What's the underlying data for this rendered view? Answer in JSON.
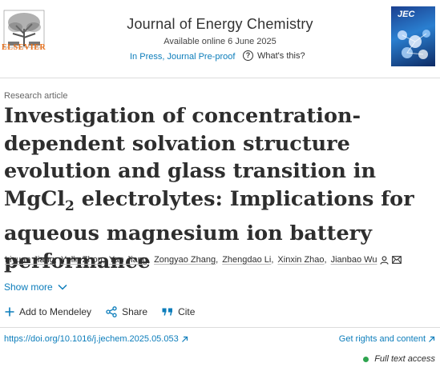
{
  "publisher": {
    "name": "ELSEVIER",
    "logo_icon": "elsevier-tree-icon",
    "brand_color": "#e9711c"
  },
  "journal": {
    "title": "Journal of Energy Chemistry",
    "available": "Available online 6 June 2025",
    "status": "In Press, Journal Pre-proof",
    "whats_this": "What's this?",
    "cover_label": "JEC"
  },
  "article": {
    "type": "Research article",
    "title_before": "Investigation of concentration-dependent solvation structure evolution and glass transition in MgCl",
    "title_sub": "2",
    "title_after": " electrolytes: Implications for aqueous magnesium ion battery performance"
  },
  "authors": [
    "Liyuan Jiang",
    "Yulin Zhou",
    "Yan Jiang",
    "Zongyao Zhang",
    "Zhengdao Li",
    "Xinxin Zhao",
    "Jianbao Wu"
  ],
  "author_separator": ",",
  "show_more": "Show more",
  "actions": {
    "mendeley": "Add to Mendeley",
    "share": "Share",
    "cite": "Cite"
  },
  "footer": {
    "doi": "https://doi.org/10.1016/j.jechem.2025.05.053",
    "rights": "Get rights and content",
    "access": "Full text access"
  },
  "colors": {
    "link": "#0c7dbb",
    "text": "#2e2e2e",
    "access_dot": "#2ea44f"
  }
}
